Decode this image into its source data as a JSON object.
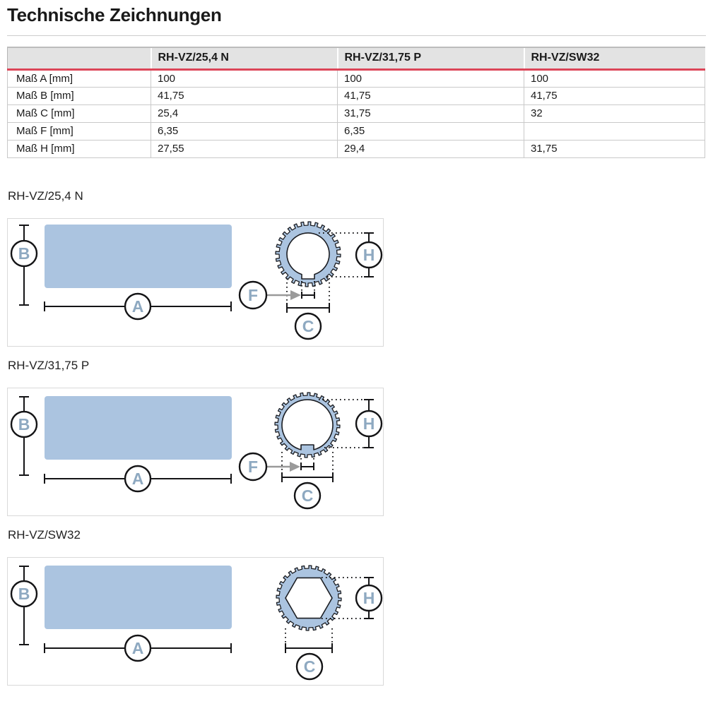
{
  "title": "Technische Zeichnungen",
  "table": {
    "columns": [
      "",
      "RH-VZ/25,4 N",
      "RH-VZ/31,75 P",
      "RH-VZ/SW32"
    ],
    "rows": [
      {
        "label": "Maß A [mm]",
        "values": [
          "100",
          "100",
          "100"
        ]
      },
      {
        "label": "Maß B [mm]",
        "values": [
          "41,75",
          "41,75",
          "41,75"
        ]
      },
      {
        "label": "Maß C [mm]",
        "values": [
          "25,4",
          "31,75",
          "32"
        ]
      },
      {
        "label": "Maß F [mm]",
        "values": [
          "6,35",
          "6,35",
          ""
        ]
      },
      {
        "label": "Maß H [mm]",
        "values": [
          "27,55",
          "29,4",
          "31,75"
        ]
      }
    ]
  },
  "drawings": [
    {
      "title": "RH-VZ/25,4 N",
      "dim_labels": {
        "A": "A",
        "B": "B",
        "C": "C",
        "F": "F",
        "H": "H"
      }
    },
    {
      "title": "RH-VZ/31,75 P",
      "dim_labels": {
        "A": "A",
        "B": "B",
        "C": "C",
        "F": "F",
        "H": "H"
      }
    },
    {
      "title": "RH-VZ/SW32",
      "dim_labels": {
        "A": "A",
        "B": "B",
        "C": "C",
        "H": "H"
      }
    }
  ],
  "colors": {
    "accent_red": "#dc4558",
    "part_fill": "#abc4e0",
    "label_letter": "#8ea9c1",
    "header_bg": "#e3e3e3",
    "grid_border": "#c9c9c9",
    "box_border": "#d9d9d9"
  }
}
